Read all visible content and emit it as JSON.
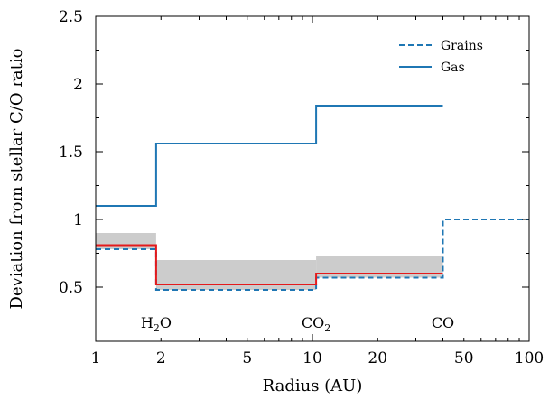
{
  "chart_data": {
    "type": "line",
    "title": "",
    "xlabel": "Radius (AU)",
    "ylabel": "Deviation from stellar C/O ratio",
    "xscale": "log",
    "xlim": [
      1,
      100
    ],
    "ylim": [
      0.1,
      2.5
    ],
    "grid": false,
    "legend_position": "top-right",
    "x_ticks": [
      {
        "value": 1,
        "label": "1"
      },
      {
        "value": 2,
        "label": "2"
      },
      {
        "value": 5,
        "label": "5"
      },
      {
        "value": 10,
        "label": "10"
      },
      {
        "value": 20,
        "label": "20"
      },
      {
        "value": 50,
        "label": "50"
      },
      {
        "value": 100,
        "label": "100"
      }
    ],
    "y_ticks": [
      {
        "value": 0.5,
        "label": "0.5"
      },
      {
        "value": 1.0,
        "label": "1"
      },
      {
        "value": 1.5,
        "label": "1.5"
      },
      {
        "value": 2.0,
        "label": "2"
      },
      {
        "value": 2.5,
        "label": "2.5"
      }
    ],
    "series": [
      {
        "name": "Grains",
        "style": "dashed",
        "color": "#1f77b4",
        "x": [
          1,
          1.9,
          1.9,
          10.4,
          10.4,
          40,
          40,
          100
        ],
        "y": [
          0.78,
          0.78,
          0.48,
          0.48,
          0.57,
          0.57,
          1.0,
          1.0
        ]
      },
      {
        "name": "Gas",
        "style": "solid",
        "color": "#1f77b4",
        "x": [
          1,
          1.9,
          1.9,
          10.4,
          10.4,
          40
        ],
        "y": [
          1.1,
          1.1,
          1.56,
          1.56,
          1.84,
          1.84
        ]
      },
      {
        "name": "",
        "style": "solid",
        "color": "#e41a1c",
        "x": [
          1,
          1.9,
          1.9,
          10.4,
          10.4,
          40
        ],
        "y": [
          0.81,
          0.81,
          0.52,
          0.52,
          0.6,
          0.6
        ]
      }
    ],
    "bands": [
      {
        "x0": 1,
        "x1": 1.9,
        "y0": 0.78,
        "y1": 0.9
      },
      {
        "x0": 1.9,
        "x1": 10.4,
        "y0": 0.48,
        "y1": 0.7
      },
      {
        "x0": 10.4,
        "x1": 40,
        "y0": 0.57,
        "y1": 0.73
      }
    ],
    "band_color": "#cccccc",
    "annotations": [
      {
        "x": 1.9,
        "y": 0.2,
        "main": "H",
        "sub": "2",
        "tail": "O"
      },
      {
        "x": 10.4,
        "y": 0.2,
        "main": "CO",
        "sub": "2",
        "tail": ""
      },
      {
        "x": 40,
        "y": 0.2,
        "main": "CO",
        "sub": "",
        "tail": ""
      }
    ]
  }
}
